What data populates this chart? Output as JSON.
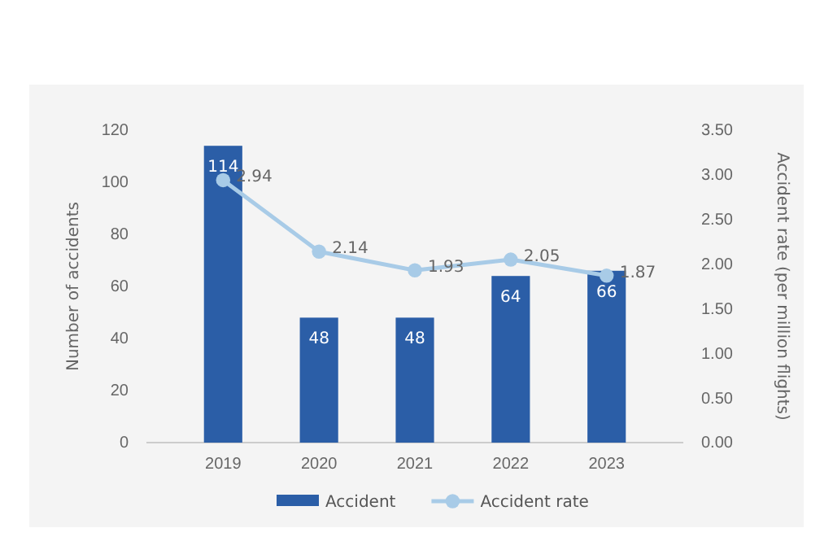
{
  "chart_data": {
    "type": "bar",
    "categories": [
      "2019",
      "2020",
      "2021",
      "2022",
      "2023"
    ],
    "series": [
      {
        "name": "Accident",
        "color": "#2b5ea7",
        "values": [
          114,
          48,
          48,
          64,
          66
        ]
      },
      {
        "name": "Accident rate",
        "type": "line",
        "axis": "y2",
        "color": "#a8cbe7",
        "values": [
          2.94,
          2.14,
          1.93,
          2.05,
          1.87
        ]
      }
    ],
    "ylabel": "Number of accidents",
    "y2label": "Accident rate (per million flights)",
    "ylim": [
      0,
      120
    ],
    "yticks": [
      0,
      20,
      40,
      60,
      80,
      100,
      120
    ],
    "y2lim": [
      0,
      3.5
    ],
    "y2ticks": [
      {
        "value": 0,
        "label": "0.00"
      },
      {
        "value": 0.5,
        "label": "0.50"
      },
      {
        "value": 1,
        "label": "1.00"
      },
      {
        "value": 1.5,
        "label": "1.50"
      },
      {
        "value": 2,
        "label": "2.00"
      },
      {
        "value": 2.5,
        "label": "2.50"
      },
      {
        "value": 3,
        "label": "3.00"
      },
      {
        "value": 3.5,
        "label": "3.50"
      }
    ],
    "data_labels": true,
    "legend": "bottom",
    "marker": "circle",
    "grid": false
  }
}
